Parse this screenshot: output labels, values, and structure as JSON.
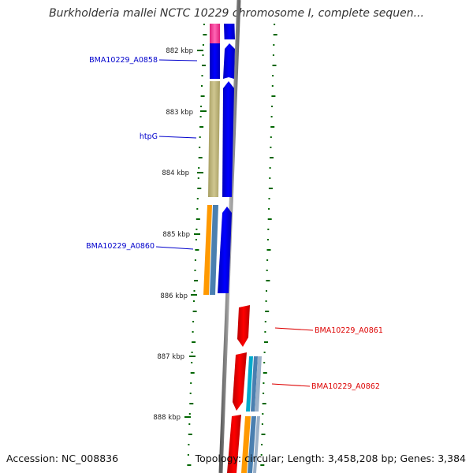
{
  "title": "Burkholderia mallei NCTC 10229 chromosome I, complete sequen...",
  "footer": {
    "accession": "Accession: NC_008836",
    "summary": "Topology: circular; Length: 3,458,208 bp; Genes: 3,384"
  },
  "scale": {
    "unit": "kbp",
    "ticks": [
      {
        "value": 882,
        "label": "882 kbp"
      },
      {
        "value": 883,
        "label": "883 kbp"
      },
      {
        "value": 884,
        "label": "884 kbp"
      },
      {
        "value": 885,
        "label": "885 kbp"
      },
      {
        "value": 886,
        "label": "886 kbp"
      },
      {
        "value": 887,
        "label": "887 kbp"
      },
      {
        "value": 888,
        "label": "888 kbp"
      }
    ]
  },
  "genes": [
    {
      "name": "BMA10229_A0858",
      "strand": "forward",
      "color": "#0000cc"
    },
    {
      "name": "htpG",
      "strand": "forward",
      "color": "#0000cc"
    },
    {
      "name": "BMA10229_A0860",
      "strand": "forward",
      "color": "#0000cc"
    },
    {
      "name": "BMA10229_A0861",
      "strand": "reverse",
      "color": "#dd0000"
    },
    {
      "name": "BMA10229_A0862",
      "strand": "reverse",
      "color": "#dd0000"
    }
  ],
  "colors": {
    "forward_cds": "#0000ee",
    "reverse_cds": "#ee0000",
    "backbone": "#808080",
    "gc_skew": "#006600",
    "highlight": "#ee44aa",
    "khaki": "#bdb47a",
    "orange": "#ff9900",
    "steel_blue": "#4a7fb0",
    "cyan": "#00aacc"
  }
}
